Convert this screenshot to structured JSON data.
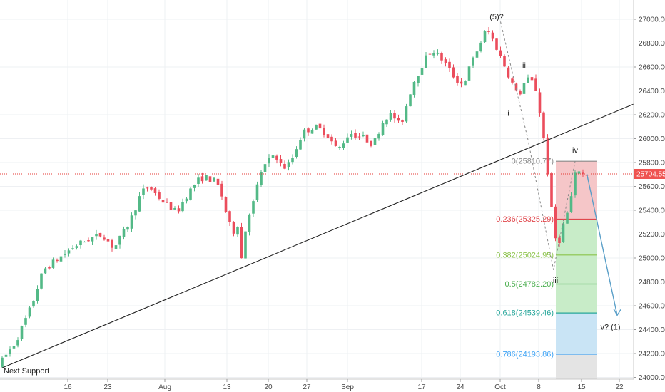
{
  "chart_data": {
    "type": "candlestick",
    "title": "",
    "y_axis": {
      "min": 23970,
      "max": 27080,
      "ticks": [
        24000,
        24200,
        24400,
        24600,
        24800,
        25000,
        25200,
        25400,
        25600,
        25800,
        26000,
        26200,
        26400,
        26600,
        26800,
        27000
      ],
      "tick_labels": [
        "24000.00",
        "24200.00",
        "24400.00",
        "24600.00",
        "24800.00",
        "25000.00",
        "25200.00",
        "25400.00",
        "25600.00",
        "25800.00",
        "26000.00",
        "26200.00",
        "26400.00",
        "26600.00",
        "26800.00",
        "27000.00"
      ]
    },
    "x_axis": {
      "tick_labels": [
        "16",
        "23",
        "Aug",
        "13",
        "20",
        "27",
        "Sep",
        "17",
        "24",
        "Oct",
        "8",
        "15",
        "22"
      ]
    },
    "price_path": [
      [
        0,
        24120
      ],
      [
        4,
        24300
      ],
      [
        8,
        24600
      ],
      [
        11,
        24900
      ],
      [
        15,
        25000
      ],
      [
        19,
        25100
      ],
      [
        22,
        25150
      ],
      [
        26,
        25200
      ],
      [
        29,
        25080
      ],
      [
        33,
        25300
      ],
      [
        36,
        25550
      ],
      [
        38,
        25600
      ],
      [
        40,
        25520
      ],
      [
        42,
        25460
      ],
      [
        45,
        25380
      ],
      [
        47,
        25500
      ],
      [
        50,
        25640
      ],
      [
        52,
        25680
      ],
      [
        55,
        25640
      ],
      [
        57,
        25480
      ],
      [
        58,
        25300
      ],
      [
        60,
        25200
      ],
      [
        61,
        25360
      ],
      [
        61.5,
        25000
      ],
      [
        63,
        25350
      ],
      [
        65,
        25500
      ],
      [
        66,
        25700
      ],
      [
        68,
        25800
      ],
      [
        70,
        25880
      ],
      [
        72,
        25750
      ],
      [
        74,
        25800
      ],
      [
        77,
        26050
      ],
      [
        80,
        26100
      ],
      [
        83,
        26050
      ],
      [
        86,
        25900
      ],
      [
        89,
        26050
      ],
      [
        93,
        26000
      ],
      [
        95,
        25950
      ],
      [
        98,
        26180
      ],
      [
        100,
        26200
      ],
      [
        102,
        26100
      ],
      [
        105,
        26450
      ],
      [
        108,
        26650
      ],
      [
        110,
        26750
      ],
      [
        113,
        26650
      ],
      [
        116,
        26500
      ],
      [
        118,
        26450
      ],
      [
        119,
        26550
      ],
      [
        121,
        26700
      ],
      [
        124,
        26920
      ],
      [
        126,
        26800
      ],
      [
        128,
        26650
      ],
      [
        130,
        26500
      ],
      [
        132,
        26350
      ],
      [
        134,
        26500
      ],
      [
        136,
        26470
      ],
      [
        137,
        26350
      ],
      [
        138,
        26100
      ],
      [
        139,
        25900
      ],
      [
        140,
        25550
      ],
      [
        141,
        25250
      ],
      [
        142,
        25080
      ],
      [
        143,
        25220
      ],
      [
        144,
        25330
      ],
      [
        145,
        25420
      ],
      [
        146,
        25600
      ],
      [
        147,
        25780
      ],
      [
        148,
        25700
      ],
      [
        149,
        25704.55
      ]
    ],
    "candle_count": 150,
    "last_price": 25704.55,
    "last_price_label": "25704.55",
    "fibonacci": [
      {
        "ratio": 0,
        "label": "0(25810.77)",
        "price": 25810.77,
        "color": "#888888"
      },
      {
        "ratio": 0.236,
        "label": "0.236(25325.29)",
        "price": 25325.29,
        "color": "#e0474c"
      },
      {
        "ratio": 0.382,
        "label": "0.382(25024.95)",
        "price": 25024.95,
        "color": "#8bc34a"
      },
      {
        "ratio": 0.5,
        "label": "0.5(24782.20)",
        "price": 24782.2,
        "color": "#4caf50"
      },
      {
        "ratio": 0.618,
        "label": "0.618(24539.46)",
        "price": 24539.46,
        "color": "#26a69a"
      },
      {
        "ratio": 0.786,
        "label": "0.786(24193.86)",
        "price": 24193.86,
        "color": "#42a5f5"
      }
    ],
    "trendline": {
      "x1": 0,
      "y1": 24080,
      "x2": 161,
      "y2": 26290
    },
    "wave_labels": [
      {
        "text": "(5)?",
        "x": 126,
        "y": 27000
      },
      {
        "text": "ii",
        "x": 133,
        "y": 26590
      },
      {
        "text": "i",
        "x": 129,
        "y": 26190
      },
      {
        "text": "iv",
        "x": 146,
        "y": 25880
      },
      {
        "text": "iii",
        "x": 141,
        "y": 24790
      },
      {
        "text": "v? (1)",
        "x": 155,
        "y": 24400
      }
    ],
    "annotation_text": "Next Support",
    "colors": {
      "up": "#53b987",
      "down": "#eb4d5c",
      "trendline": "#222222",
      "projection": "#5a9fc8",
      "price_line": "#e53935",
      "price_tag": "#ef5350",
      "fib_zone_red": "#f5c6c8",
      "fib_zone_green": "#c8ecc8",
      "fib_zone_blue": "#c9e4f5",
      "fib_zone_gray": "#e4e4e4"
    }
  }
}
